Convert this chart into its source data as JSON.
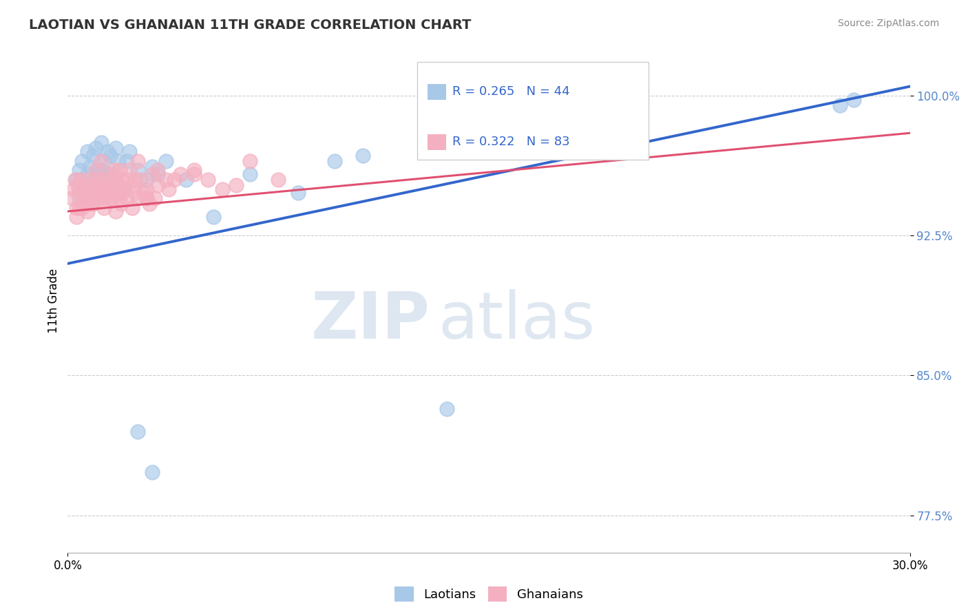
{
  "title": "LAOTIAN VS GHANAIAN 11TH GRADE CORRELATION CHART",
  "source_text": "Source: ZipAtlas.com",
  "ylabel": "11th Grade",
  "xlim": [
    0.0,
    30.0
  ],
  "ylim": [
    75.5,
    102.5
  ],
  "yticks": [
    77.5,
    85.0,
    92.5,
    100.0
  ],
  "ytick_labels": [
    "77.5%",
    "85.0%",
    "92.5%",
    "100.0%"
  ],
  "laotian_color": "#a8c8e8",
  "ghanaian_color": "#f4b0c0",
  "laotian_line_color": "#3366cc",
  "ghanaian_line_color": "#e05070",
  "legend_laotian_label": "Laotians",
  "legend_ghanaian_label": "Ghanaians",
  "r_laotian": "R = 0.265",
  "n_laotian": "N = 44",
  "r_ghanaian": "R = 0.322",
  "n_ghanaian": "N = 83",
  "lao_line_x0": 0.0,
  "lao_line_y0": 91.0,
  "lao_line_x1": 30.0,
  "lao_line_y1": 100.5,
  "gha_line_x0": 0.0,
  "gha_line_y0": 93.8,
  "gha_line_x1": 30.0,
  "gha_line_y1": 98.0,
  "laotian_x": [
    0.3,
    0.4,
    0.5,
    0.6,
    0.7,
    0.7,
    0.8,
    0.9,
    1.0,
    1.0,
    1.1,
    1.2,
    1.3,
    1.4,
    1.5,
    1.6,
    1.7,
    1.8,
    2.0,
    2.1,
    2.2,
    2.5,
    2.8,
    3.0,
    3.2,
    3.5,
    4.2,
    5.2,
    6.5,
    8.2,
    9.5,
    10.5,
    13.5,
    27.5,
    28.0,
    0.4,
    0.6,
    0.8,
    1.0,
    1.2,
    1.5,
    2.0,
    2.5,
    3.0
  ],
  "laotian_y": [
    95.5,
    96.0,
    96.5,
    95.0,
    95.8,
    97.0,
    96.2,
    96.8,
    95.5,
    97.2,
    96.0,
    97.5,
    96.5,
    97.0,
    96.8,
    95.8,
    97.2,
    96.5,
    95.0,
    96.5,
    97.0,
    96.0,
    95.5,
    96.2,
    95.8,
    96.5,
    95.5,
    93.5,
    95.8,
    94.8,
    96.5,
    96.8,
    83.2,
    99.5,
    99.8,
    94.5,
    95.2,
    94.8,
    95.5,
    96.0,
    95.8,
    95.0,
    82.0,
    79.8
  ],
  "ghanaian_x": [
    0.15,
    0.2,
    0.25,
    0.3,
    0.35,
    0.4,
    0.45,
    0.5,
    0.55,
    0.6,
    0.65,
    0.7,
    0.75,
    0.8,
    0.85,
    0.9,
    0.95,
    1.0,
    1.05,
    1.1,
    1.15,
    1.2,
    1.25,
    1.3,
    1.35,
    1.4,
    1.45,
    1.5,
    1.55,
    1.6,
    1.65,
    1.7,
    1.75,
    1.8,
    1.85,
    1.9,
    1.95,
    2.0,
    2.1,
    2.2,
    2.3,
    2.4,
    2.5,
    2.6,
    2.8,
    3.0,
    3.2,
    3.5,
    4.0,
    4.5,
    5.0,
    5.5,
    6.5,
    7.5,
    0.3,
    0.5,
    0.7,
    0.9,
    1.1,
    1.3,
    1.5,
    1.7,
    1.9,
    2.1,
    2.3,
    2.5,
    2.7,
    2.9,
    3.1,
    1.8,
    2.8,
    3.8,
    0.4,
    0.8,
    1.2,
    1.6,
    2.0,
    2.4,
    2.8,
    3.2,
    3.6,
    4.5,
    6.0
  ],
  "ghanaian_y": [
    94.5,
    95.0,
    95.5,
    94.0,
    95.2,
    94.8,
    95.5,
    94.2,
    95.0,
    94.5,
    95.2,
    94.8,
    95.5,
    94.2,
    95.0,
    94.5,
    95.2,
    96.0,
    95.5,
    94.8,
    95.2,
    96.5,
    95.0,
    94.5,
    95.5,
    94.8,
    95.2,
    95.8,
    94.5,
    95.0,
    96.0,
    95.5,
    94.8,
    95.2,
    96.0,
    95.5,
    94.8,
    95.0,
    95.5,
    96.0,
    95.2,
    94.8,
    96.5,
    95.5,
    94.5,
    95.8,
    96.0,
    95.5,
    95.8,
    96.0,
    95.5,
    95.0,
    96.5,
    95.5,
    93.5,
    94.0,
    93.8,
    94.2,
    94.5,
    94.0,
    94.5,
    93.8,
    94.2,
    94.5,
    94.0,
    94.5,
    94.8,
    94.2,
    94.5,
    94.5,
    95.0,
    95.5,
    94.0,
    94.5,
    95.0,
    95.5,
    95.0,
    95.5,
    94.5,
    95.2,
    95.0,
    95.8,
    95.2
  ]
}
